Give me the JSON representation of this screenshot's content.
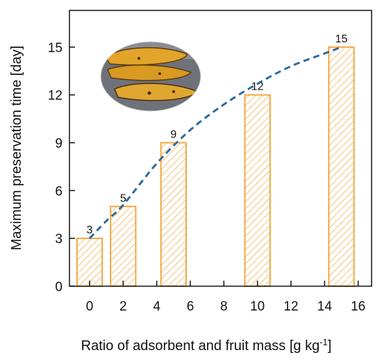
{
  "chart_data": {
    "type": "bar",
    "x": [
      0,
      2,
      5,
      10,
      15
    ],
    "values": [
      3,
      5,
      9,
      12,
      15
    ],
    "data_labels": [
      "3",
      "5",
      "9",
      "12",
      "15"
    ],
    "xlabel": "Ratio of adsorbent and fruit mass [g kg",
    "xlabel_sup": "-1",
    "xlabel_end": "]",
    "ylabel": "Maximum preservation time [day]",
    "xlim": [
      -1.2,
      16.8
    ],
    "ylim": [
      0,
      17.3
    ],
    "xticks": [
      0,
      2,
      4,
      6,
      8,
      10,
      12,
      14,
      16
    ],
    "yticks": [
      0,
      3,
      6,
      9,
      12,
      15
    ],
    "bar_width": 1.5,
    "trend_line": {
      "style": "dashed",
      "color": "#2e6a9e",
      "points": [
        [
          0,
          3
        ],
        [
          1,
          4.1
        ],
        [
          2,
          5.1
        ],
        [
          4,
          7.7
        ],
        [
          6,
          9.8
        ],
        [
          8,
          11.4
        ],
        [
          10,
          12.7
        ],
        [
          12,
          13.8
        ],
        [
          14,
          14.6
        ],
        [
          15,
          15
        ]
      ]
    },
    "bar_color": "#f0a030",
    "grid": false,
    "legend": "none"
  },
  "inset_image": {
    "icon": "banana-photo-icon"
  }
}
